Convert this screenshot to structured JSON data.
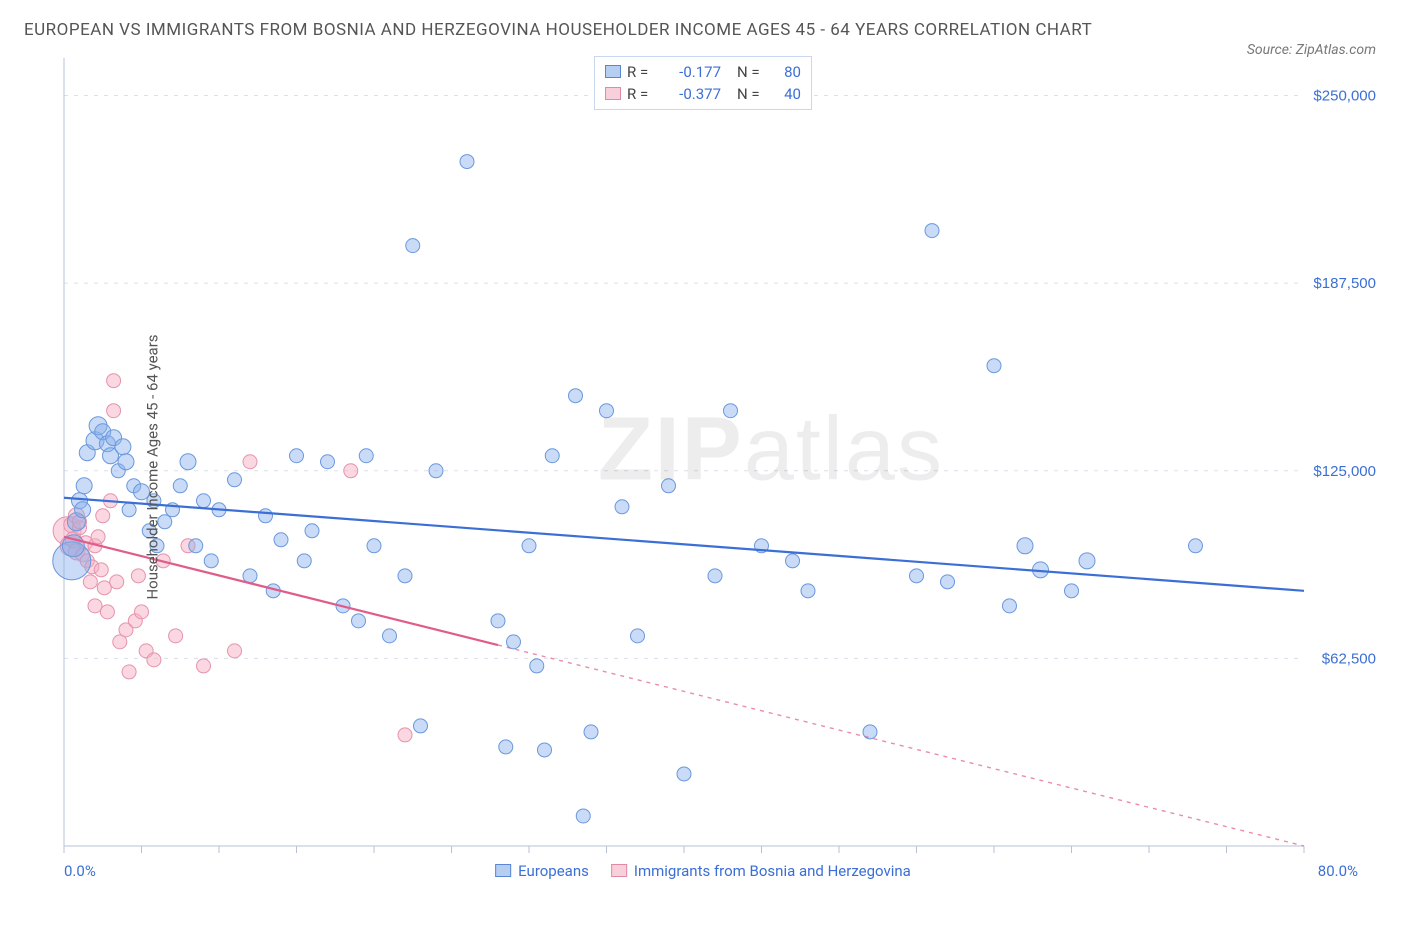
{
  "title": "EUROPEAN VS IMMIGRANTS FROM BOSNIA AND HERZEGOVINA HOUSEHOLDER INCOME AGES 45 - 64 YEARS CORRELATION CHART",
  "source": "Source: ZipAtlas.com",
  "watermark_bold": "ZIP",
  "watermark_light": "atlas",
  "chart": {
    "type": "scatter",
    "ylabel": "Householder Income Ages 45 - 64 years",
    "xlim": [
      0,
      80
    ],
    "ylim": [
      0,
      262500
    ],
    "xtick_min_label": "0.0%",
    "xtick_max_label": "80.0%",
    "ytick_labels": [
      "$62,500",
      "$125,000",
      "$187,500",
      "$250,000"
    ],
    "ytick_values": [
      62500,
      125000,
      187500,
      250000
    ],
    "grid_color": "#d9e0ec",
    "axis_color": "#b8c2d4",
    "background_color": "#ffffff",
    "series": [
      {
        "name": "Europeans",
        "legend_label": "Europeans",
        "color_fill": "rgba(135,175,235,0.45)",
        "color_stroke": "#6a98dd",
        "trend_color": "#3b6fd6",
        "r_value": "-0.177",
        "n_value": "80",
        "trend": {
          "x1": 0,
          "y1": 116000,
          "x2": 80,
          "y2": 85000,
          "solid_until_x": 80
        },
        "points": [
          {
            "x": 0.5,
            "y": 95000,
            "r": 19
          },
          {
            "x": 0.6,
            "y": 100000,
            "r": 11
          },
          {
            "x": 0.8,
            "y": 108000,
            "r": 9
          },
          {
            "x": 1.0,
            "y": 115000,
            "r": 8
          },
          {
            "x": 1.2,
            "y": 112000,
            "r": 8
          },
          {
            "x": 1.3,
            "y": 120000,
            "r": 8
          },
          {
            "x": 1.5,
            "y": 131000,
            "r": 8
          },
          {
            "x": 2.0,
            "y": 135000,
            "r": 9
          },
          {
            "x": 2.2,
            "y": 140000,
            "r": 9
          },
          {
            "x": 2.5,
            "y": 138000,
            "r": 8
          },
          {
            "x": 2.8,
            "y": 134000,
            "r": 8
          },
          {
            "x": 3.0,
            "y": 130000,
            "r": 8
          },
          {
            "x": 3.2,
            "y": 136000,
            "r": 8
          },
          {
            "x": 3.5,
            "y": 125000,
            "r": 7
          },
          {
            "x": 3.8,
            "y": 133000,
            "r": 8
          },
          {
            "x": 4.0,
            "y": 128000,
            "r": 8
          },
          {
            "x": 4.5,
            "y": 120000,
            "r": 7
          },
          {
            "x": 4.2,
            "y": 112000,
            "r": 7
          },
          {
            "x": 5.0,
            "y": 118000,
            "r": 8
          },
          {
            "x": 5.5,
            "y": 105000,
            "r": 7
          },
          {
            "x": 5.8,
            "y": 115000,
            "r": 7
          },
          {
            "x": 6.0,
            "y": 100000,
            "r": 7
          },
          {
            "x": 6.5,
            "y": 108000,
            "r": 7
          },
          {
            "x": 7.0,
            "y": 112000,
            "r": 7
          },
          {
            "x": 7.5,
            "y": 120000,
            "r": 7
          },
          {
            "x": 8.0,
            "y": 128000,
            "r": 8
          },
          {
            "x": 8.5,
            "y": 100000,
            "r": 7
          },
          {
            "x": 9.0,
            "y": 115000,
            "r": 7
          },
          {
            "x": 9.5,
            "y": 95000,
            "r": 7
          },
          {
            "x": 10.0,
            "y": 112000,
            "r": 7
          },
          {
            "x": 11.0,
            "y": 122000,
            "r": 7
          },
          {
            "x": 12.0,
            "y": 90000,
            "r": 7
          },
          {
            "x": 13.0,
            "y": 110000,
            "r": 7
          },
          {
            "x": 13.5,
            "y": 85000,
            "r": 7
          },
          {
            "x": 14.0,
            "y": 102000,
            "r": 7
          },
          {
            "x": 15.0,
            "y": 130000,
            "r": 7
          },
          {
            "x": 15.5,
            "y": 95000,
            "r": 7
          },
          {
            "x": 16.0,
            "y": 105000,
            "r": 7
          },
          {
            "x": 17.0,
            "y": 128000,
            "r": 7
          },
          {
            "x": 18.0,
            "y": 80000,
            "r": 7
          },
          {
            "x": 19.0,
            "y": 75000,
            "r": 7
          },
          {
            "x": 19.5,
            "y": 130000,
            "r": 7
          },
          {
            "x": 20.0,
            "y": 100000,
            "r": 7
          },
          {
            "x": 21.0,
            "y": 70000,
            "r": 7
          },
          {
            "x": 22.0,
            "y": 90000,
            "r": 7
          },
          {
            "x": 23.0,
            "y": 40000,
            "r": 7
          },
          {
            "x": 24.0,
            "y": 125000,
            "r": 7
          },
          {
            "x": 22.5,
            "y": 200000,
            "r": 7
          },
          {
            "x": 26.0,
            "y": 228000,
            "r": 7
          },
          {
            "x": 28.0,
            "y": 75000,
            "r": 7
          },
          {
            "x": 28.5,
            "y": 33000,
            "r": 7
          },
          {
            "x": 29.0,
            "y": 68000,
            "r": 7
          },
          {
            "x": 30.0,
            "y": 100000,
            "r": 7
          },
          {
            "x": 30.5,
            "y": 60000,
            "r": 7
          },
          {
            "x": 31.0,
            "y": 32000,
            "r": 7
          },
          {
            "x": 31.5,
            "y": 130000,
            "r": 7
          },
          {
            "x": 33.0,
            "y": 150000,
            "r": 7
          },
          {
            "x": 33.5,
            "y": 10000,
            "r": 7
          },
          {
            "x": 34.0,
            "y": 38000,
            "r": 7
          },
          {
            "x": 35.0,
            "y": 145000,
            "r": 7
          },
          {
            "x": 36.0,
            "y": 113000,
            "r": 7
          },
          {
            "x": 37.0,
            "y": 70000,
            "r": 7
          },
          {
            "x": 39.0,
            "y": 120000,
            "r": 7
          },
          {
            "x": 40.0,
            "y": 24000,
            "r": 7
          },
          {
            "x": 42.0,
            "y": 90000,
            "r": 7
          },
          {
            "x": 43.0,
            "y": 145000,
            "r": 7
          },
          {
            "x": 45.0,
            "y": 100000,
            "r": 7
          },
          {
            "x": 47.0,
            "y": 95000,
            "r": 7
          },
          {
            "x": 48.0,
            "y": 85000,
            "r": 7
          },
          {
            "x": 52.0,
            "y": 38000,
            "r": 7
          },
          {
            "x": 55.0,
            "y": 90000,
            "r": 7
          },
          {
            "x": 56.0,
            "y": 205000,
            "r": 7
          },
          {
            "x": 57.0,
            "y": 88000,
            "r": 7
          },
          {
            "x": 60.0,
            "y": 160000,
            "r": 7
          },
          {
            "x": 61.0,
            "y": 80000,
            "r": 7
          },
          {
            "x": 62.0,
            "y": 100000,
            "r": 8
          },
          {
            "x": 63.0,
            "y": 92000,
            "r": 8
          },
          {
            "x": 65.0,
            "y": 85000,
            "r": 7
          },
          {
            "x": 66.0,
            "y": 95000,
            "r": 8
          },
          {
            "x": 73.0,
            "y": 100000,
            "r": 7
          }
        ]
      },
      {
        "name": "Immigrants from Bosnia and Herzegovina",
        "legend_label": "Immigrants from Bosnia and Herzegovina",
        "color_fill": "rgba(245,175,195,0.50)",
        "color_stroke": "#e693ac",
        "trend_color": "#e05c8a",
        "r_value": "-0.377",
        "n_value": "40",
        "trend": {
          "x1": 0,
          "y1": 103000,
          "x2": 80,
          "y2": 0,
          "solid_until_x": 28
        },
        "points": [
          {
            "x": 0.2,
            "y": 105000,
            "r": 14
          },
          {
            "x": 0.4,
            "y": 100000,
            "r": 10
          },
          {
            "x": 0.5,
            "y": 107000,
            "r": 8
          },
          {
            "x": 0.6,
            "y": 102000,
            "r": 8
          },
          {
            "x": 0.8,
            "y": 98000,
            "r": 8
          },
          {
            "x": 0.8,
            "y": 110000,
            "r": 8
          },
          {
            "x": 1.0,
            "y": 106000,
            "r": 7
          },
          {
            "x": 1.0,
            "y": 108000,
            "r": 7
          },
          {
            "x": 1.2,
            "y": 97000,
            "r": 7
          },
          {
            "x": 1.4,
            "y": 101000,
            "r": 7
          },
          {
            "x": 1.5,
            "y": 95000,
            "r": 7
          },
          {
            "x": 1.7,
            "y": 88000,
            "r": 7
          },
          {
            "x": 1.8,
            "y": 93000,
            "r": 7
          },
          {
            "x": 2.0,
            "y": 80000,
            "r": 7
          },
          {
            "x": 2.0,
            "y": 100000,
            "r": 7
          },
          {
            "x": 2.2,
            "y": 103000,
            "r": 7
          },
          {
            "x": 2.4,
            "y": 92000,
            "r": 7
          },
          {
            "x": 2.6,
            "y": 86000,
            "r": 7
          },
          {
            "x": 2.5,
            "y": 110000,
            "r": 7
          },
          {
            "x": 2.8,
            "y": 78000,
            "r": 7
          },
          {
            "x": 3.0,
            "y": 115000,
            "r": 7
          },
          {
            "x": 3.2,
            "y": 145000,
            "r": 7
          },
          {
            "x": 3.2,
            "y": 155000,
            "r": 7
          },
          {
            "x": 3.4,
            "y": 88000,
            "r": 7
          },
          {
            "x": 3.6,
            "y": 68000,
            "r": 7
          },
          {
            "x": 4.0,
            "y": 72000,
            "r": 7
          },
          {
            "x": 4.2,
            "y": 58000,
            "r": 7
          },
          {
            "x": 4.6,
            "y": 75000,
            "r": 7
          },
          {
            "x": 4.8,
            "y": 90000,
            "r": 7
          },
          {
            "x": 5.3,
            "y": 65000,
            "r": 7
          },
          {
            "x": 5.0,
            "y": 78000,
            "r": 7
          },
          {
            "x": 5.8,
            "y": 62000,
            "r": 7
          },
          {
            "x": 6.4,
            "y": 95000,
            "r": 7
          },
          {
            "x": 7.2,
            "y": 70000,
            "r": 7
          },
          {
            "x": 8.0,
            "y": 100000,
            "r": 7
          },
          {
            "x": 9.0,
            "y": 60000,
            "r": 7
          },
          {
            "x": 11.0,
            "y": 65000,
            "r": 7
          },
          {
            "x": 12.0,
            "y": 128000,
            "r": 7
          },
          {
            "x": 18.5,
            "y": 125000,
            "r": 7
          },
          {
            "x": 22.0,
            "y": 37000,
            "r": 7
          }
        ]
      }
    ]
  },
  "legend_top_labels": {
    "r_prefix": "R =",
    "n_prefix": "N ="
  }
}
